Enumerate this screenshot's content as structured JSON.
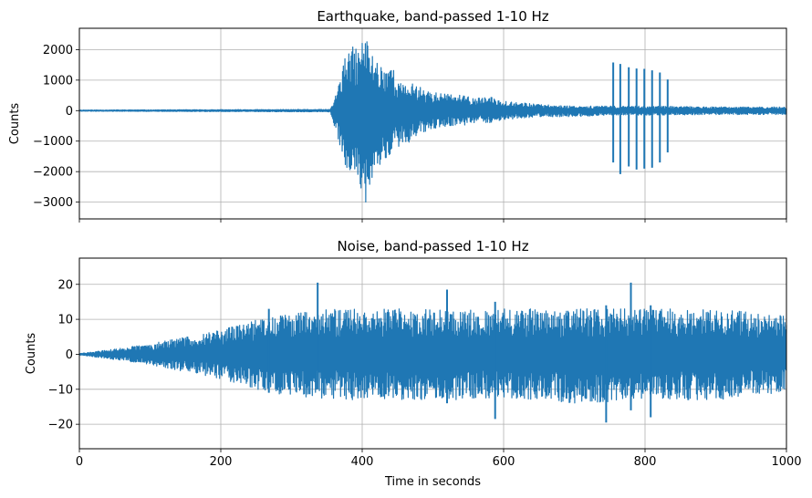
{
  "chart_data": [
    {
      "type": "line",
      "title": "Earthquake, band-passed 1-10 Hz",
      "xlabel": "",
      "ylabel": "Counts",
      "xlim": [
        0,
        1000
      ],
      "ylim": [
        -3550,
        2700
      ],
      "xticks": [
        0,
        200,
        400,
        600,
        800,
        1000
      ],
      "yticks": [
        -3000,
        -2000,
        -1000,
        0,
        1000,
        2000
      ],
      "ytick_labels": [
        "−3000",
        "−2000",
        "−1000",
        "0",
        "1000",
        "2000"
      ],
      "grid": true,
      "color": "#1f77b4",
      "envelope": {
        "x": [
          0,
          355,
          365,
          375,
          385,
          395,
          400,
          405,
          410,
          415,
          420,
          430,
          440,
          450,
          460,
          470,
          480,
          500,
          520,
          540,
          560,
          580,
          600,
          650,
          700,
          750,
          800,
          900,
          1000
        ],
        "upper": [
          20,
          40,
          700,
          1700,
          2100,
          2000,
          2350,
          2450,
          2150,
          1850,
          1700,
          1400,
          1650,
          1000,
          800,
          900,
          800,
          600,
          550,
          500,
          400,
          450,
          330,
          200,
          150,
          150,
          150,
          120,
          120
        ],
        "lower": [
          -20,
          -40,
          -900,
          -1800,
          -2200,
          -2500,
          -2700,
          -3250,
          -2600,
          -2300,
          -2000,
          -1700,
          -1500,
          -1200,
          -1100,
          -1000,
          -800,
          -600,
          -500,
          -500,
          -400,
          -400,
          -300,
          -200,
          -200,
          -150,
          -150,
          -130,
          -130
        ]
      },
      "spikes": [
        {
          "x": 755,
          "max": 1580,
          "min": -1700
        },
        {
          "x": 765,
          "max": 1530,
          "min": -2080
        },
        {
          "x": 777,
          "max": 1420,
          "min": -1830
        },
        {
          "x": 788,
          "max": 1380,
          "min": -1930
        },
        {
          "x": 799,
          "max": 1370,
          "min": -1900
        },
        {
          "x": 810,
          "max": 1320,
          "min": -1870
        },
        {
          "x": 821,
          "max": 1250,
          "min": -1700
        },
        {
          "x": 832,
          "max": 1020,
          "min": -1370
        }
      ]
    },
    {
      "type": "line",
      "title": "Noise, band-passed 1-10 Hz",
      "xlabel": "Time in seconds",
      "ylabel": "Counts",
      "xlim": [
        0,
        1000
      ],
      "ylim": [
        -27,
        27.5
      ],
      "xticks": [
        0,
        200,
        400,
        600,
        800,
        1000
      ],
      "yticks": [
        -20,
        -10,
        0,
        10,
        20
      ],
      "ytick_labels": [
        "−20",
        "−10",
        "0",
        "10",
        "20"
      ],
      "grid": true,
      "color": "#1f77b4",
      "envelope": {
        "x": [
          0,
          50,
          100,
          150,
          200,
          250,
          300,
          350,
          400,
          450,
          500,
          550,
          600,
          650,
          700,
          750,
          800,
          850,
          900,
          950,
          1000
        ],
        "upper": [
          0.2,
          1.5,
          3,
          5,
          7,
          10,
          12,
          13,
          13,
          13,
          13,
          13,
          13,
          13,
          13,
          13,
          13,
          13,
          13,
          12,
          11
        ],
        "lower": [
          -0.2,
          -1.5,
          -3,
          -5,
          -7,
          -10,
          -12,
          -13,
          -13,
          -13,
          -13,
          -13,
          -13,
          -13,
          -14,
          -14,
          -13,
          -13,
          -13,
          -12,
          -11
        ]
      },
      "spikes": [
        {
          "x": 268,
          "max": 13,
          "min": -11
        },
        {
          "x": 337,
          "max": 20.5,
          "min": -10
        },
        {
          "x": 520,
          "max": 18.5,
          "min": -14
        },
        {
          "x": 588,
          "max": 15,
          "min": -18.5
        },
        {
          "x": 745,
          "max": 14,
          "min": -19.5
        },
        {
          "x": 780,
          "max": 20.5,
          "min": -16
        },
        {
          "x": 808,
          "max": 14,
          "min": -18
        }
      ]
    }
  ]
}
